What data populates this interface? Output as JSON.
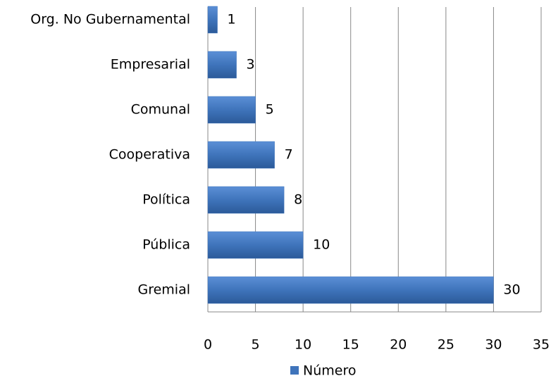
{
  "chart_data": {
    "type": "bar",
    "orientation": "horizontal",
    "categories": [
      "Org. No Gubernamental",
      "Empresarial",
      "Comunal",
      "Cooperativa",
      "Política",
      "Pública",
      "Gremial"
    ],
    "series": [
      {
        "name": "Número",
        "color": "#3f74bb",
        "values": [
          1,
          3,
          5,
          7,
          8,
          10,
          30
        ]
      }
    ],
    "xlim": [
      0,
      35
    ],
    "xticks": [
      0,
      5,
      10,
      15,
      20,
      25,
      30,
      35
    ],
    "grid": true,
    "legend": "bottom"
  }
}
